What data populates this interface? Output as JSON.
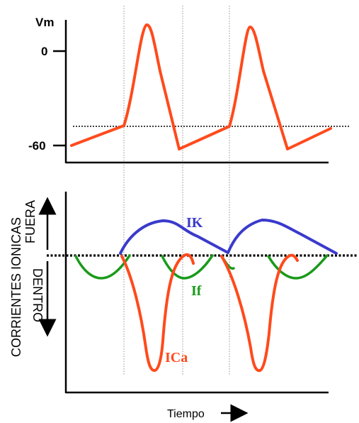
{
  "top_panel": {
    "y_label": "Vm",
    "tick_0": "0",
    "tick_minus60": "-60"
  },
  "bottom_panel": {
    "y_label": "CORRIENTES IONICAS",
    "out_label": "FUERA",
    "in_label": "DENTRO",
    "ik_label": "IK",
    "if_label": "If",
    "ica_label": "ICa",
    "x_label": "Tiempo"
  },
  "colors": {
    "vm_trace": "#ff4a1c",
    "ik": "#3a3acc",
    "if": "#1a9a1a",
    "ica": "#ff4a1c",
    "ik_label": "#3a3acc",
    "if_label": "#1a9a1a",
    "ica_label": "#ff4a1c"
  }
}
